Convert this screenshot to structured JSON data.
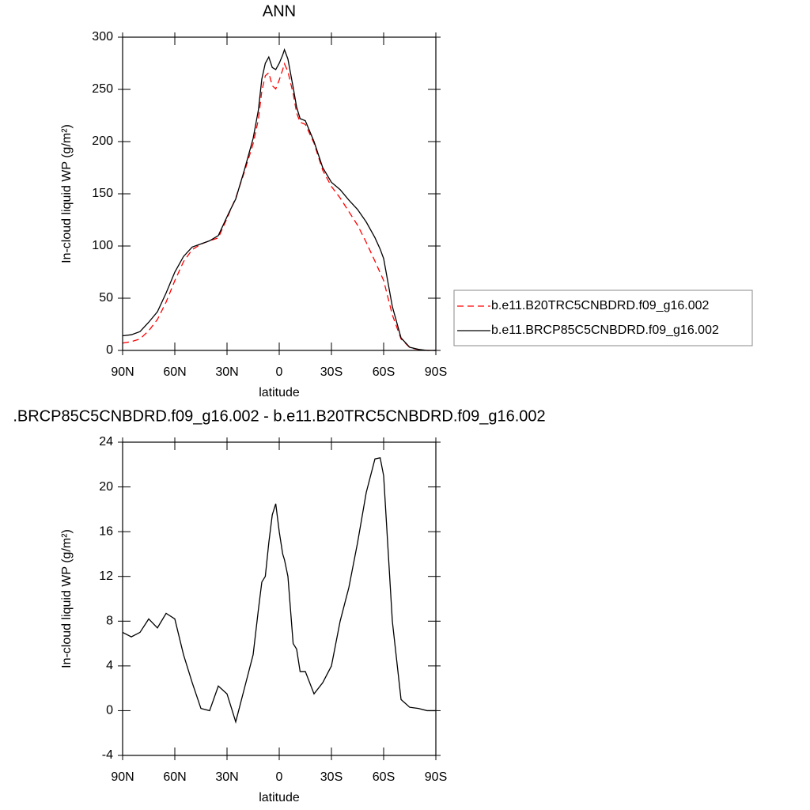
{
  "chart_data": [
    {
      "type": "line",
      "title": "ANN",
      "xlabel": "latitude",
      "ylabel": "In-cloud liquid WP (g/m²)",
      "x": [
        90,
        85,
        80,
        75,
        70,
        65,
        60,
        55,
        50,
        45,
        40,
        35,
        30,
        28,
        25,
        20,
        15,
        12,
        10,
        8,
        6,
        4,
        2,
        0,
        -2,
        -3,
        -5,
        -8,
        -10,
        -12,
        -15,
        -20,
        -25,
        -30,
        -35,
        -40,
        -45,
        -50,
        -55,
        -58,
        -60,
        -65,
        -70,
        -75,
        -80,
        -85,
        -90
      ],
      "series": [
        {
          "name": "b.e11.B20TRC5CNBDRD.f09_g16.002",
          "color": "#ff0000",
          "line_style": "dashed",
          "values": [
            7,
            8.4,
            11,
            18.8,
            29.6,
            46.3,
            66.8,
            85,
            96.5,
            101.8,
            105,
            107.8,
            126.5,
            134.5,
            146,
            171,
            198,
            221,
            248.5,
            263,
            266,
            253.5,
            250.5,
            259,
            269,
            274.5,
            267,
            246,
            227.5,
            218.5,
            216.5,
            198.5,
            172.5,
            157,
            146,
            133,
            120,
            103.5,
            85.5,
            74.4,
            67,
            34,
            11,
            2.7,
            0.8,
            0,
            0
          ]
        },
        {
          "name": "b.e11.BRCP85C5CNBDRD.f09_g16.002",
          "color": "#000000",
          "line_style": "solid",
          "values": [
            14,
            15,
            18,
            27,
            37,
            55,
            75,
            90,
            99,
            102,
            105,
            110,
            128,
            135,
            145,
            173,
            203,
            230,
            260,
            275,
            281,
            271,
            269,
            275,
            283,
            288,
            279,
            252,
            233,
            222,
            220,
            200,
            175,
            161,
            154,
            144,
            135,
            123,
            108,
            97,
            88,
            42,
            12,
            3,
            1,
            0,
            0
          ]
        }
      ],
      "xlim": [
        90,
        -90
      ],
      "xticks": [
        {
          "value": 90,
          "label": "90N"
        },
        {
          "value": 60,
          "label": "60N"
        },
        {
          "value": 30,
          "label": "30N"
        },
        0,
        {
          "value": -30,
          "label": "30S"
        },
        {
          "value": -60,
          "label": "60S"
        },
        {
          "value": -90,
          "label": "90S"
        }
      ],
      "ylim": [
        0,
        300
      ],
      "yticks": [
        0,
        50,
        100,
        150,
        200,
        250,
        300
      ],
      "legend": "right"
    },
    {
      "type": "line",
      "title": ".BRCP85C5CNBDRD.f09_g16.002 - b.e11.B20TRC5CNBDRD.f09_g16.002",
      "xlabel": "latitude",
      "ylabel": "In-cloud liquid WP (g/m²)",
      "x": [
        90,
        85,
        80,
        75,
        70,
        65,
        60,
        55,
        50,
        45,
        40,
        35,
        30,
        28,
        25,
        20,
        15,
        12,
        10,
        8,
        6,
        4,
        2,
        0,
        -2,
        -3,
        -5,
        -8,
        -10,
        -12,
        -15,
        -20,
        -25,
        -30,
        -35,
        -40,
        -45,
        -50,
        -55,
        -58,
        -60,
        -65,
        -70,
        -75,
        -80,
        -85,
        -90
      ],
      "series": [
        {
          "color": "#000000",
          "line_style": "solid",
          "values": [
            7,
            6.6,
            7,
            8.2,
            7.4,
            8.7,
            8.2,
            5,
            2.5,
            0.2,
            0,
            2.2,
            1.5,
            0.5,
            -1,
            2,
            5,
            9,
            11.5,
            12,
            15,
            17.5,
            18.5,
            16,
            14,
            13.5,
            12,
            6,
            5.5,
            3.5,
            3.5,
            1.5,
            2.5,
            4,
            8,
            11,
            15,
            19.5,
            22.5,
            22.6,
            21,
            8,
            1,
            0.3,
            0.2,
            0,
            0
          ]
        }
      ],
      "xlim": [
        90,
        -90
      ],
      "xticks": [
        {
          "value": 90,
          "label": "90N"
        },
        {
          "value": 60,
          "label": "60N"
        },
        {
          "value": 30,
          "label": "30N"
        },
        0,
        {
          "value": -30,
          "label": "30S"
        },
        {
          "value": -60,
          "label": "60S"
        },
        {
          "value": -90,
          "label": "90S"
        }
      ],
      "ylim": [
        -4,
        24
      ],
      "yticks": [
        -4,
        0,
        4,
        8,
        12,
        16,
        20,
        24
      ]
    }
  ]
}
